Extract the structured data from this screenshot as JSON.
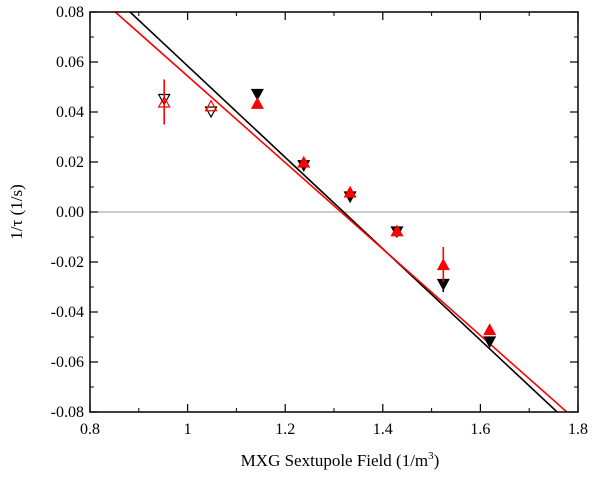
{
  "chart_data": {
    "type": "scatter",
    "title": "",
    "xlabel": "MXG Sextupole Field  (1/m",
    "xlabel_sup": "3",
    "xlabel_close": ")",
    "ylabel": "1/τ   (1/s)",
    "xlim": [
      0.8,
      1.8
    ],
    "ylim": [
      -0.08,
      0.08
    ],
    "x_ticks": [
      0.8,
      1,
      1.2,
      1.4,
      1.6,
      1.8
    ],
    "x_tick_labels": [
      "0.8",
      "1",
      "1.2",
      "1.4",
      "1.6",
      "1.8"
    ],
    "y_ticks": [
      -0.08,
      -0.06,
      -0.04,
      -0.02,
      0.0,
      0.02,
      0.04,
      0.06,
      0.08
    ],
    "y_tick_labels": [
      "-0.08",
      "-0.06",
      "-0.04",
      "-0.02",
      "0.00",
      "0.02",
      "0.04",
      "0.06",
      "0.08"
    ],
    "grid": false,
    "zero_line": true,
    "colors": {
      "black": "#000000",
      "red": "#ff0000",
      "zero_line": "#999999"
    },
    "series": [
      {
        "marker": "down-triangle",
        "color": "#000000",
        "points": [
          {
            "x": 0.952,
            "y": 0.045,
            "err": 0.0,
            "filled": false
          },
          {
            "x": 1.048,
            "y": 0.04,
            "err": 0.0,
            "filled": false
          },
          {
            "x": 1.143,
            "y": 0.047,
            "err": 0.0,
            "filled": true
          },
          {
            "x": 1.238,
            "y": 0.0185,
            "err": 0.0,
            "filled": true
          },
          {
            "x": 1.333,
            "y": 0.006,
            "err": 0.0,
            "filled": true
          },
          {
            "x": 1.429,
            "y": -0.008,
            "err": 0.0,
            "filled": true
          },
          {
            "x": 1.524,
            "y": -0.029,
            "err": 0.003,
            "filled": true
          },
          {
            "x": 1.619,
            "y": -0.052,
            "err": 0.0,
            "filled": true
          }
        ],
        "fit": [
          {
            "x": 0.83,
            "y": 0.0895
          },
          {
            "x": 1.76,
            "y": -0.0805
          }
        ]
      },
      {
        "marker": "up-triangle",
        "color": "#ff0000",
        "points": [
          {
            "x": 0.952,
            "y": 0.044,
            "err": 0.009,
            "filled": false
          },
          {
            "x": 1.048,
            "y": 0.0425,
            "err": 0.0,
            "filled": false
          },
          {
            "x": 1.143,
            "y": 0.0435,
            "err": 0.0,
            "filled": true
          },
          {
            "x": 1.238,
            "y": 0.02,
            "err": 0.0,
            "filled": true
          },
          {
            "x": 1.333,
            "y": 0.008,
            "err": 0.0,
            "filled": true
          },
          {
            "x": 1.429,
            "y": -0.0075,
            "err": 0.0,
            "filled": true
          },
          {
            "x": 1.524,
            "y": -0.021,
            "err": 0.007,
            "filled": true
          },
          {
            "x": 1.619,
            "y": -0.047,
            "err": 0.0,
            "filled": true
          }
        ],
        "fit": [
          {
            "x": 0.82,
            "y": 0.0855
          },
          {
            "x": 1.78,
            "y": -0.0805
          }
        ]
      }
    ]
  }
}
